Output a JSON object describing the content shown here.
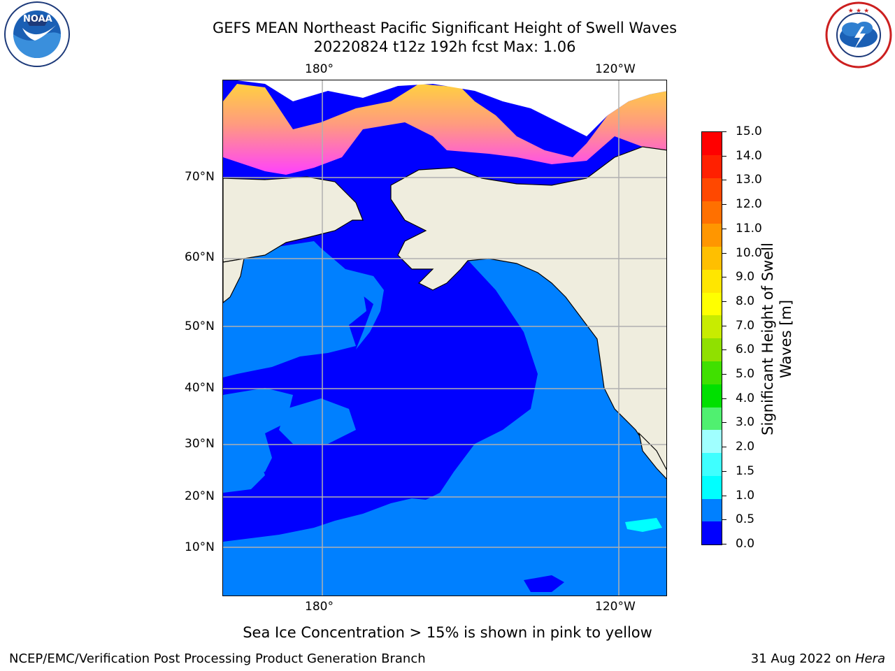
{
  "header": {
    "title_line1": "GEFS MEAN Northeast Pacific Significant Height of Swell Waves",
    "title_line2": "20220824 t12z 192h fcst   Max: 1.06"
  },
  "logos": {
    "noaa_text": "NOAA",
    "noaa_ring": "NATIONAL OCEANIC AND ATMOSPHERIC ADMINISTRATION · U.S. DEPARTMENT OF COMMERCE",
    "nws_ring": "NATIONAL WEATHER SERVICE"
  },
  "map": {
    "lon_top": [
      "180°",
      "120°W"
    ],
    "lon_bottom": [
      "180°",
      "120°W"
    ],
    "lat_labels": [
      "70°N",
      "60°N",
      "50°N",
      "40°N",
      "30°N",
      "20°N",
      "10°N"
    ],
    "land_color": "#efedde",
    "ocean_low_color": "#0000ff",
    "ocean_mid_color": "#0080ff",
    "grid_color": "#b0b0b0",
    "max_value": 1.06
  },
  "colorbar": {
    "label": "Significant Height of Swell Waves [m]",
    "ticks": [
      "15.0",
      "14.0",
      "13.0",
      "12.0",
      "11.0",
      "10.0",
      "9.0",
      "8.0",
      "7.0",
      "6.0",
      "5.0",
      "4.0",
      "3.0",
      "2.0",
      "1.5",
      "1.0",
      "0.5",
      "0.0"
    ],
    "colors_bottom_to_top": [
      "#0000ff",
      "#0080ff",
      "#00ffff",
      "#3fffff",
      "#a0ffff",
      "#50f070",
      "#00e000",
      "#40e000",
      "#90e000",
      "#c8ec00",
      "#ffff00",
      "#ffe600",
      "#ffbf00",
      "#ff9600",
      "#ff7000",
      "#ff4800",
      "#ff2000",
      "#ff0000"
    ]
  },
  "footer": {
    "ice_note": "Sea Ice Concentration > 15% is shown in pink to yellow",
    "credit": "NCEP/EMC/Verification Post Processing Product Generation Branch",
    "date": "31 Aug 2022 on ",
    "host": "Hera"
  }
}
